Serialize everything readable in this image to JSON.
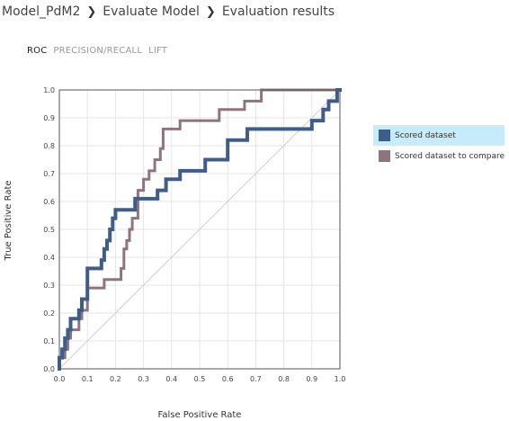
{
  "breadcrumb": {
    "items": [
      "Model_PdM2",
      "Evaluate Model",
      "Evaluation results"
    ],
    "separator": "❯"
  },
  "tabs": [
    {
      "label": "ROC",
      "active": true
    },
    {
      "label": "PRECISION/RECALL",
      "active": false
    },
    {
      "label": "LIFT",
      "active": false
    }
  ],
  "chart_data": {
    "type": "line",
    "xlabel": "False Positive Rate",
    "ylabel": "True Positive Rate",
    "xlim": [
      0,
      1
    ],
    "ylim": [
      0,
      1
    ],
    "xticks": [
      "0.0",
      "0.1",
      "0.2",
      "0.3",
      "0.4",
      "0.5",
      "0.6",
      "0.7",
      "0.8",
      "0.9",
      "1.0"
    ],
    "yticks": [
      "0.0",
      "0.1",
      "0.2",
      "0.3",
      "0.4",
      "0.5",
      "0.6",
      "0.7",
      "0.8",
      "0.9",
      "1.0"
    ],
    "grid": true,
    "diagonal": true,
    "legend_position": "right",
    "series": [
      {
        "name": "Scored dataset",
        "color": "#3f5d8a",
        "selected": true,
        "points": [
          [
            0,
            0
          ],
          [
            0,
            0.04
          ],
          [
            0.01,
            0.04
          ],
          [
            0.01,
            0.07
          ],
          [
            0.02,
            0.07
          ],
          [
            0.02,
            0.11
          ],
          [
            0.03,
            0.11
          ],
          [
            0.03,
            0.14
          ],
          [
            0.04,
            0.14
          ],
          [
            0.04,
            0.18
          ],
          [
            0.07,
            0.18
          ],
          [
            0.07,
            0.21
          ],
          [
            0.08,
            0.21
          ],
          [
            0.08,
            0.25
          ],
          [
            0.1,
            0.25
          ],
          [
            0.1,
            0.36
          ],
          [
            0.15,
            0.36
          ],
          [
            0.15,
            0.39
          ],
          [
            0.16,
            0.39
          ],
          [
            0.16,
            0.43
          ],
          [
            0.17,
            0.43
          ],
          [
            0.17,
            0.46
          ],
          [
            0.18,
            0.46
          ],
          [
            0.18,
            0.5
          ],
          [
            0.19,
            0.5
          ],
          [
            0.19,
            0.54
          ],
          [
            0.2,
            0.54
          ],
          [
            0.2,
            0.57
          ],
          [
            0.27,
            0.57
          ],
          [
            0.27,
            0.61
          ],
          [
            0.35,
            0.61
          ],
          [
            0.35,
            0.64
          ],
          [
            0.38,
            0.64
          ],
          [
            0.38,
            0.68
          ],
          [
            0.43,
            0.68
          ],
          [
            0.43,
            0.71
          ],
          [
            0.52,
            0.71
          ],
          [
            0.52,
            0.75
          ],
          [
            0.6,
            0.75
          ],
          [
            0.6,
            0.82
          ],
          [
            0.67,
            0.82
          ],
          [
            0.67,
            0.86
          ],
          [
            0.9,
            0.86
          ],
          [
            0.9,
            0.89
          ],
          [
            0.94,
            0.89
          ],
          [
            0.94,
            0.93
          ],
          [
            0.96,
            0.93
          ],
          [
            0.96,
            0.96
          ],
          [
            0.99,
            0.96
          ],
          [
            0.99,
            1.0
          ],
          [
            1.0,
            1.0
          ]
        ]
      },
      {
        "name": "Scored dataset to compare",
        "color": "#8f7480",
        "selected": false,
        "points": [
          [
            0,
            0
          ],
          [
            0,
            0.04
          ],
          [
            0.02,
            0.04
          ],
          [
            0.02,
            0.07
          ],
          [
            0.03,
            0.07
          ],
          [
            0.03,
            0.11
          ],
          [
            0.04,
            0.11
          ],
          [
            0.04,
            0.14
          ],
          [
            0.07,
            0.14
          ],
          [
            0.07,
            0.18
          ],
          [
            0.08,
            0.18
          ],
          [
            0.08,
            0.21
          ],
          [
            0.1,
            0.21
          ],
          [
            0.1,
            0.29
          ],
          [
            0.16,
            0.29
          ],
          [
            0.16,
            0.32
          ],
          [
            0.22,
            0.32
          ],
          [
            0.22,
            0.36
          ],
          [
            0.23,
            0.36
          ],
          [
            0.23,
            0.43
          ],
          [
            0.24,
            0.43
          ],
          [
            0.24,
            0.46
          ],
          [
            0.25,
            0.46
          ],
          [
            0.25,
            0.5
          ],
          [
            0.26,
            0.5
          ],
          [
            0.26,
            0.54
          ],
          [
            0.28,
            0.54
          ],
          [
            0.28,
            0.64
          ],
          [
            0.3,
            0.64
          ],
          [
            0.3,
            0.68
          ],
          [
            0.32,
            0.68
          ],
          [
            0.32,
            0.71
          ],
          [
            0.34,
            0.71
          ],
          [
            0.34,
            0.75
          ],
          [
            0.36,
            0.75
          ],
          [
            0.36,
            0.79
          ],
          [
            0.37,
            0.79
          ],
          [
            0.37,
            0.86
          ],
          [
            0.43,
            0.86
          ],
          [
            0.43,
            0.89
          ],
          [
            0.57,
            0.89
          ],
          [
            0.57,
            0.93
          ],
          [
            0.66,
            0.93
          ],
          [
            0.66,
            0.96
          ],
          [
            0.72,
            0.96
          ],
          [
            0.72,
            1.0
          ],
          [
            1.0,
            1.0
          ]
        ]
      }
    ]
  }
}
